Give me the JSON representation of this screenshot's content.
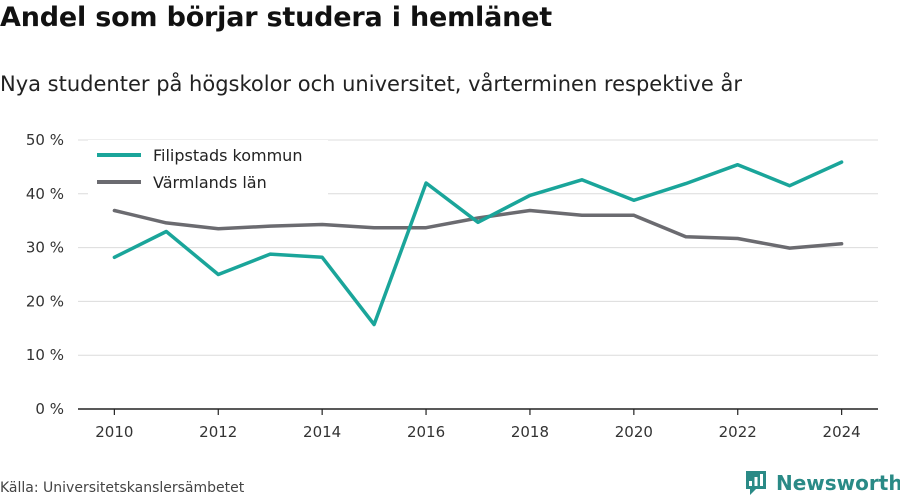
{
  "title": "Andel som börjar studera i hemlänet",
  "subtitle": "Nya studenter på högskolor och universitet, vårterminen respektive år",
  "source": "Källa: Universitetskanslersämbetet",
  "brand": {
    "name": "Newsworthy",
    "icon": "newsworthy-logo-icon",
    "color": "#2a8a86"
  },
  "chart_data": {
    "type": "line",
    "x": [
      2010,
      2011,
      2012,
      2013,
      2014,
      2015,
      2016,
      2017,
      2018,
      2019,
      2020,
      2021,
      2022,
      2023,
      2024
    ],
    "series": [
      {
        "name": "Filipstads kommun",
        "color": "#1aa59a",
        "values": [
          28.2,
          33.0,
          25.0,
          28.8,
          28.2,
          15.7,
          42.0,
          34.7,
          39.7,
          42.6,
          38.8,
          41.9,
          45.4,
          41.5,
          45.9
        ]
      },
      {
        "name": "Värmlands län",
        "color": "#6b6b70",
        "values": [
          36.9,
          34.6,
          33.5,
          34.0,
          34.3,
          33.7,
          33.7,
          35.5,
          36.9,
          36.0,
          36.0,
          32.0,
          31.7,
          29.9,
          30.7
        ]
      }
    ],
    "yticks": [
      "0 %",
      "10 %",
      "20 %",
      "30 %",
      "40 %",
      "50 %"
    ],
    "xticks": [
      "2010",
      "2012",
      "2014",
      "2016",
      "2018",
      "2020",
      "2022",
      "2024"
    ],
    "ylim": [
      0,
      50
    ],
    "xlim": [
      2009.3,
      2024.7
    ],
    "grid": true,
    "legend_position": "top-left"
  }
}
